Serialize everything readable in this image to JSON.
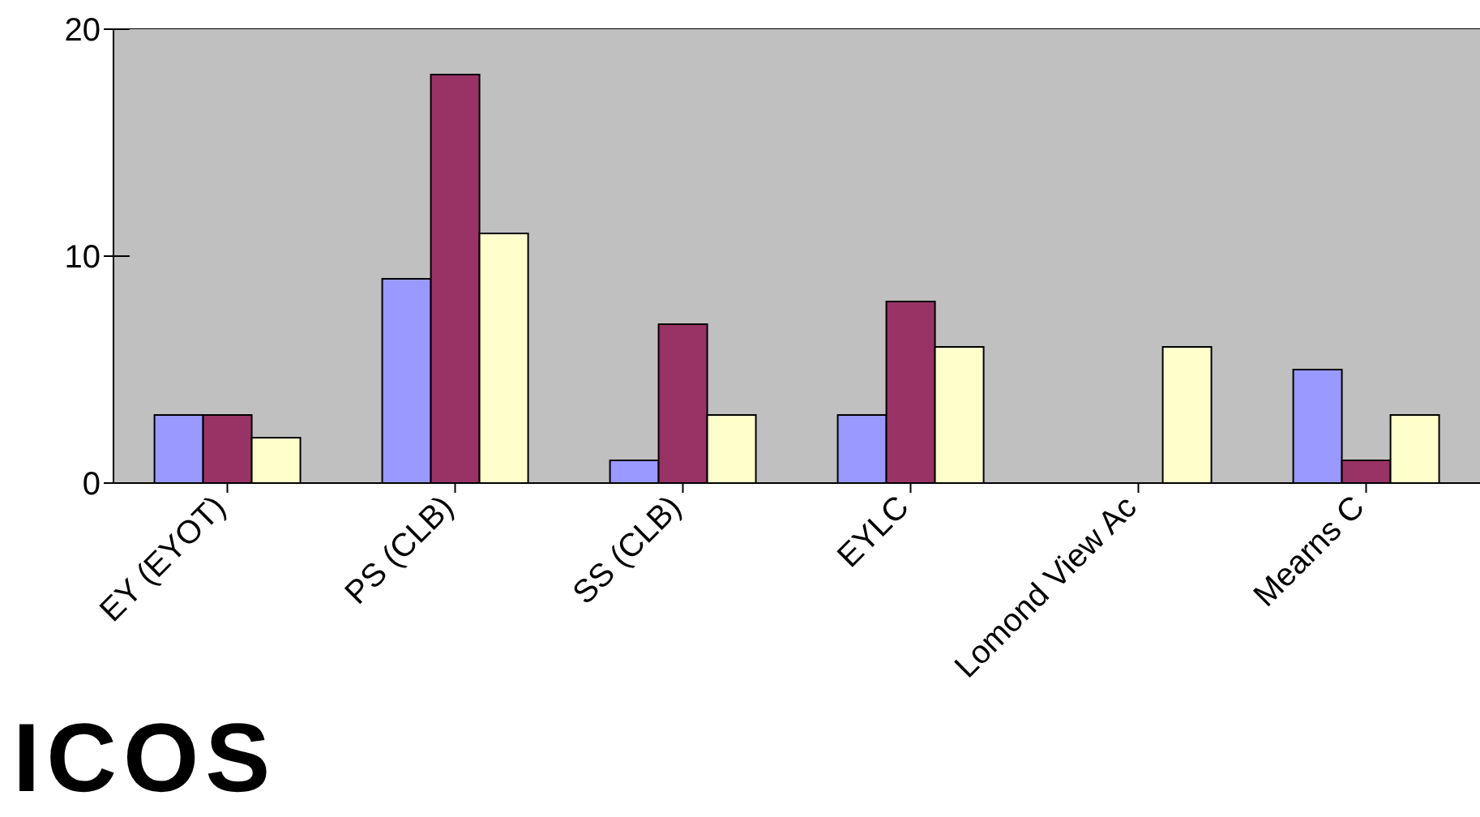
{
  "chart_data": {
    "type": "bar",
    "categories": [
      "EY (EYOT)",
      "PS (CLB)",
      "SS (CLB)",
      "EYLC",
      "Lomond View Ac",
      "Mearns C"
    ],
    "series": [
      {
        "color": "#9999ff",
        "values": [
          3,
          9,
          1,
          3,
          0,
          5
        ]
      },
      {
        "color": "#993366",
        "values": [
          3,
          18,
          7,
          8,
          0,
          1
        ]
      },
      {
        "color": "#ffffcc",
        "values": [
          2,
          11,
          3,
          6,
          6,
          3
        ]
      }
    ],
    "ylim": [
      0,
      20
    ],
    "yticks": [
      0,
      10,
      20
    ],
    "grid": "y",
    "legend": false,
    "annotations": [
      "ICOS"
    ]
  }
}
